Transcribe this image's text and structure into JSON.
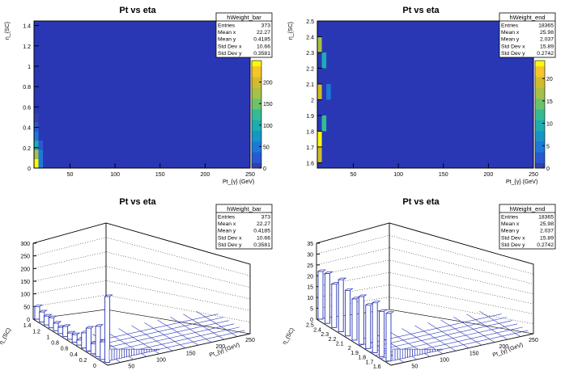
{
  "chart_data": [
    {
      "type": "heatmap",
      "title": "Pt vs eta",
      "xlabel": "Pt_{γ} (GeV)",
      "ylabel": "η_{SC}",
      "xlim": [
        10,
        250
      ],
      "ylim": [
        0,
        1.4442
      ],
      "x_ticks": [
        "50",
        "100",
        "150",
        "200",
        "250"
      ],
      "y_ticks": [
        "0",
        "0.2",
        "0.4",
        "0.6",
        "0.8",
        "1",
        "1.2",
        "1.4"
      ],
      "z_ticks": [
        "0",
        "50",
        "100",
        "150",
        "200"
      ],
      "zlim": [
        0,
        250
      ],
      "cells": [
        {
          "x": 10,
          "y": 0.0,
          "z": 250
        },
        {
          "x": 10,
          "y": 0.09,
          "z": 170
        },
        {
          "x": 10,
          "y": 0.18,
          "z": 110
        },
        {
          "x": 10,
          "y": 0.27,
          "z": 60
        },
        {
          "x": 10,
          "y": 0.36,
          "z": 25
        },
        {
          "x": 10,
          "y": 0.45,
          "z": 10
        },
        {
          "x": 15,
          "y": 0.0,
          "z": 60
        },
        {
          "x": 15,
          "y": 0.09,
          "z": 40
        },
        {
          "x": 15,
          "y": 0.18,
          "z": 20
        }
      ],
      "stats": {
        "name": "hWeight_bar",
        "rows": [
          [
            "Entries",
            "373"
          ],
          [
            "Mean x",
            "22.27"
          ],
          [
            "Mean y",
            "0.4185"
          ],
          [
            "Std Dev x",
            "10.66"
          ],
          [
            "Std Dev y",
            "0.3581"
          ]
        ]
      }
    },
    {
      "type": "heatmap",
      "title": "Pt vs eta",
      "xlabel": "Pt_{γ} (GeV)",
      "ylabel": "η_{SC}",
      "xlim": [
        10,
        250
      ],
      "ylim": [
        1.566,
        2.5
      ],
      "x_ticks": [
        "50",
        "100",
        "150",
        "200",
        "250"
      ],
      "y_ticks": [
        "1.6",
        "1.7",
        "1.8",
        "1.9",
        "2",
        "2.1",
        "2.2",
        "2.3",
        "2.4",
        "2.5"
      ],
      "z_ticks": [
        "0",
        "5",
        "10",
        "15",
        "20"
      ],
      "zlim": [
        0,
        24
      ],
      "cells": [
        {
          "x": 10,
          "y": 1.6,
          "z": 18
        },
        {
          "x": 10,
          "y": 1.7,
          "z": 24
        },
        {
          "x": 10,
          "y": 2.0,
          "z": 20
        },
        {
          "x": 10,
          "y": 2.3,
          "z": 16
        },
        {
          "x": 15,
          "y": 1.8,
          "z": 12
        },
        {
          "x": 15,
          "y": 2.2,
          "z": 10
        },
        {
          "x": 20,
          "y": 2.0,
          "z": 5
        }
      ],
      "stats": {
        "name": "hWeight_end",
        "rows": [
          [
            "Entries",
            "18365"
          ],
          [
            "Mean x",
            "25.98"
          ],
          [
            "Mean y",
            "2.037"
          ],
          [
            "Std Dev x",
            "15.89"
          ],
          [
            "Std Dev y",
            "0.2742"
          ]
        ]
      }
    },
    {
      "type": "bar",
      "title": "Pt vs eta",
      "xlabel": "Pt_{γ} (GeV)",
      "ylabel": "η_{SC}",
      "zlim": [
        0,
        300
      ],
      "z_ticks": [
        "0",
        "50",
        "100",
        "150",
        "200",
        "250",
        "300"
      ],
      "x_ticks": [
        "50",
        "100",
        "150",
        "200",
        "250"
      ],
      "y_ticks": [
        "0",
        "0.2",
        "0.4",
        "0.6",
        "0.8",
        "1",
        "1.2",
        "1.4"
      ],
      "bars_front_row": [
        50,
        40,
        35,
        40,
        30,
        25,
        40,
        25,
        30,
        20,
        60,
        90,
        40,
        120,
        70,
        260
      ],
      "stats": {
        "name": "hWeight_bar",
        "rows": [
          [
            "Entries",
            "373"
          ],
          [
            "Mean x",
            "22.27"
          ],
          [
            "Mean y",
            "0.4185"
          ],
          [
            "Std Dev x",
            "10.66"
          ],
          [
            "Std Dev y",
            "0.3581"
          ]
        ]
      }
    },
    {
      "type": "bar",
      "title": "Pt vs eta",
      "xlabel": "Pt_{γ} (GeV)",
      "ylabel": "η_{SC}",
      "zlim": [
        0,
        35
      ],
      "z_ticks": [
        "0",
        "5",
        "10",
        "15",
        "20",
        "25",
        "30",
        "35"
      ],
      "x_ticks": [
        "50",
        "100",
        "150",
        "200",
        "250"
      ],
      "y_ticks": [
        "1.6",
        "1.7",
        "1.8",
        "1.9",
        "2",
        "2.1",
        "2.2",
        "2.3",
        "2.4",
        "2.5"
      ],
      "bars_front_row": [
        22,
        23,
        20,
        24,
        21,
        19,
        22,
        20,
        23,
        21,
        22
      ],
      "stats": {
        "name": "hWeight_end",
        "rows": [
          [
            "Entries",
            "18365"
          ],
          [
            "Mean x",
            "25.98"
          ],
          [
            "Mean y",
            "2.037"
          ],
          [
            "Std Dev x",
            "15.89"
          ],
          [
            "Std Dev y",
            "0.2742"
          ]
        ]
      }
    }
  ]
}
